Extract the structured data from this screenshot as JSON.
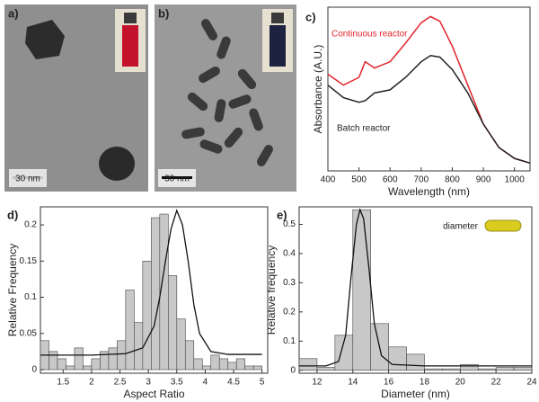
{
  "panels": {
    "a": {
      "label": "a)",
      "scale": "30 nm"
    },
    "b": {
      "label": "b)",
      "scale": "30 nm"
    }
  },
  "chart_data": [
    {
      "type": "line",
      "panel_label": "c)",
      "xlabel": "Wavelength (nm)",
      "ylabel": "Absorbance (A.U.)",
      "x": [
        400,
        450,
        500,
        520,
        550,
        600,
        650,
        700,
        730,
        760,
        800,
        850,
        900,
        950,
        1000,
        1050
      ],
      "xlim": [
        400,
        1050
      ],
      "xticks": [
        400,
        500,
        600,
        700,
        800,
        900,
        1000
      ],
      "ylim": [
        0,
        1.05
      ],
      "series": [
        {
          "name": "Continuous reactor",
          "color": "#e0262b",
          "values": [
            0.62,
            0.55,
            0.6,
            0.7,
            0.66,
            0.7,
            0.82,
            0.95,
            0.99,
            0.96,
            0.8,
            0.55,
            0.3,
            0.15,
            0.08,
            0.05
          ]
        },
        {
          "name": "Batch reactor",
          "color": "#222222",
          "values": [
            0.55,
            0.47,
            0.44,
            0.45,
            0.5,
            0.52,
            0.6,
            0.7,
            0.74,
            0.73,
            0.65,
            0.5,
            0.3,
            0.15,
            0.08,
            0.05
          ]
        }
      ]
    },
    {
      "type": "histogram",
      "panel_label": "d)",
      "xlabel": "Aspect Ratio",
      "ylabel": "Relative Frequency",
      "bins": [
        1.1,
        1.25,
        1.4,
        1.55,
        1.7,
        1.85,
        2.0,
        2.15,
        2.3,
        2.45,
        2.6,
        2.75,
        2.9,
        3.05,
        3.2,
        3.35,
        3.5,
        3.65,
        3.8,
        3.95,
        4.1,
        4.25,
        4.4,
        4.55,
        4.7,
        4.85,
        5.0
      ],
      "values": [
        0.04,
        0.025,
        0.015,
        0.005,
        0.03,
        0.005,
        0.015,
        0.025,
        0.03,
        0.04,
        0.11,
        0.065,
        0.15,
        0.21,
        0.215,
        0.13,
        0.07,
        0.04,
        0.015,
        0.005,
        0.02,
        0.015,
        0.01,
        0.015,
        0.005,
        0.005
      ],
      "color": "#c8c8c8",
      "series": [
        {
          "color": "#111111",
          "x": [
            1.1,
            2.0,
            2.6,
            2.9,
            3.1,
            3.2,
            3.3,
            3.4,
            3.5,
            3.6,
            3.7,
            3.8,
            3.9,
            4.1,
            4.4,
            5.0
          ],
          "values": [
            0.02,
            0.02,
            0.022,
            0.03,
            0.06,
            0.1,
            0.15,
            0.195,
            0.22,
            0.2,
            0.15,
            0.09,
            0.05,
            0.025,
            0.021,
            0.021
          ]
        }
      ],
      "xlim": [
        1.1,
        5.1
      ],
      "xticks": [
        1.5,
        2.0,
        2.5,
        3.0,
        3.5,
        4.0,
        4.5,
        5.0
      ],
      "ylim": [
        -0.005,
        0.225
      ],
      "yticks": [
        0.0,
        0.05,
        0.1,
        0.15,
        0.2
      ]
    },
    {
      "type": "histogram",
      "panel_label": "e)",
      "xlabel": "Diameter (nm)",
      "ylabel": "Relative frequency",
      "annotation": "diameter",
      "bins": [
        11,
        12,
        13,
        14,
        15,
        16,
        17,
        18,
        19,
        20,
        21,
        22,
        23,
        24
      ],
      "values": [
        0.04,
        0.01,
        0.12,
        0.55,
        0.16,
        0.08,
        0.055,
        0.005,
        0.005,
        0.02,
        0.005,
        0.01,
        0.01
      ],
      "color": "#c8c8c8",
      "series": [
        {
          "color": "#111111",
          "x": [
            11,
            12.5,
            13.2,
            13.6,
            13.9,
            14.2,
            14.4,
            14.6,
            14.9,
            15.2,
            15.6,
            16.2,
            18,
            24
          ],
          "values": [
            0.015,
            0.015,
            0.03,
            0.12,
            0.32,
            0.5,
            0.55,
            0.52,
            0.35,
            0.16,
            0.05,
            0.02,
            0.015,
            0.015
          ]
        }
      ],
      "xlim": [
        11,
        24
      ],
      "xticks": [
        12,
        14,
        16,
        18,
        20,
        22,
        24
      ],
      "ylim": [
        -0.01,
        0.56
      ],
      "yticks": [
        0.0,
        0.1,
        0.2,
        0.3,
        0.4,
        0.5
      ]
    }
  ]
}
